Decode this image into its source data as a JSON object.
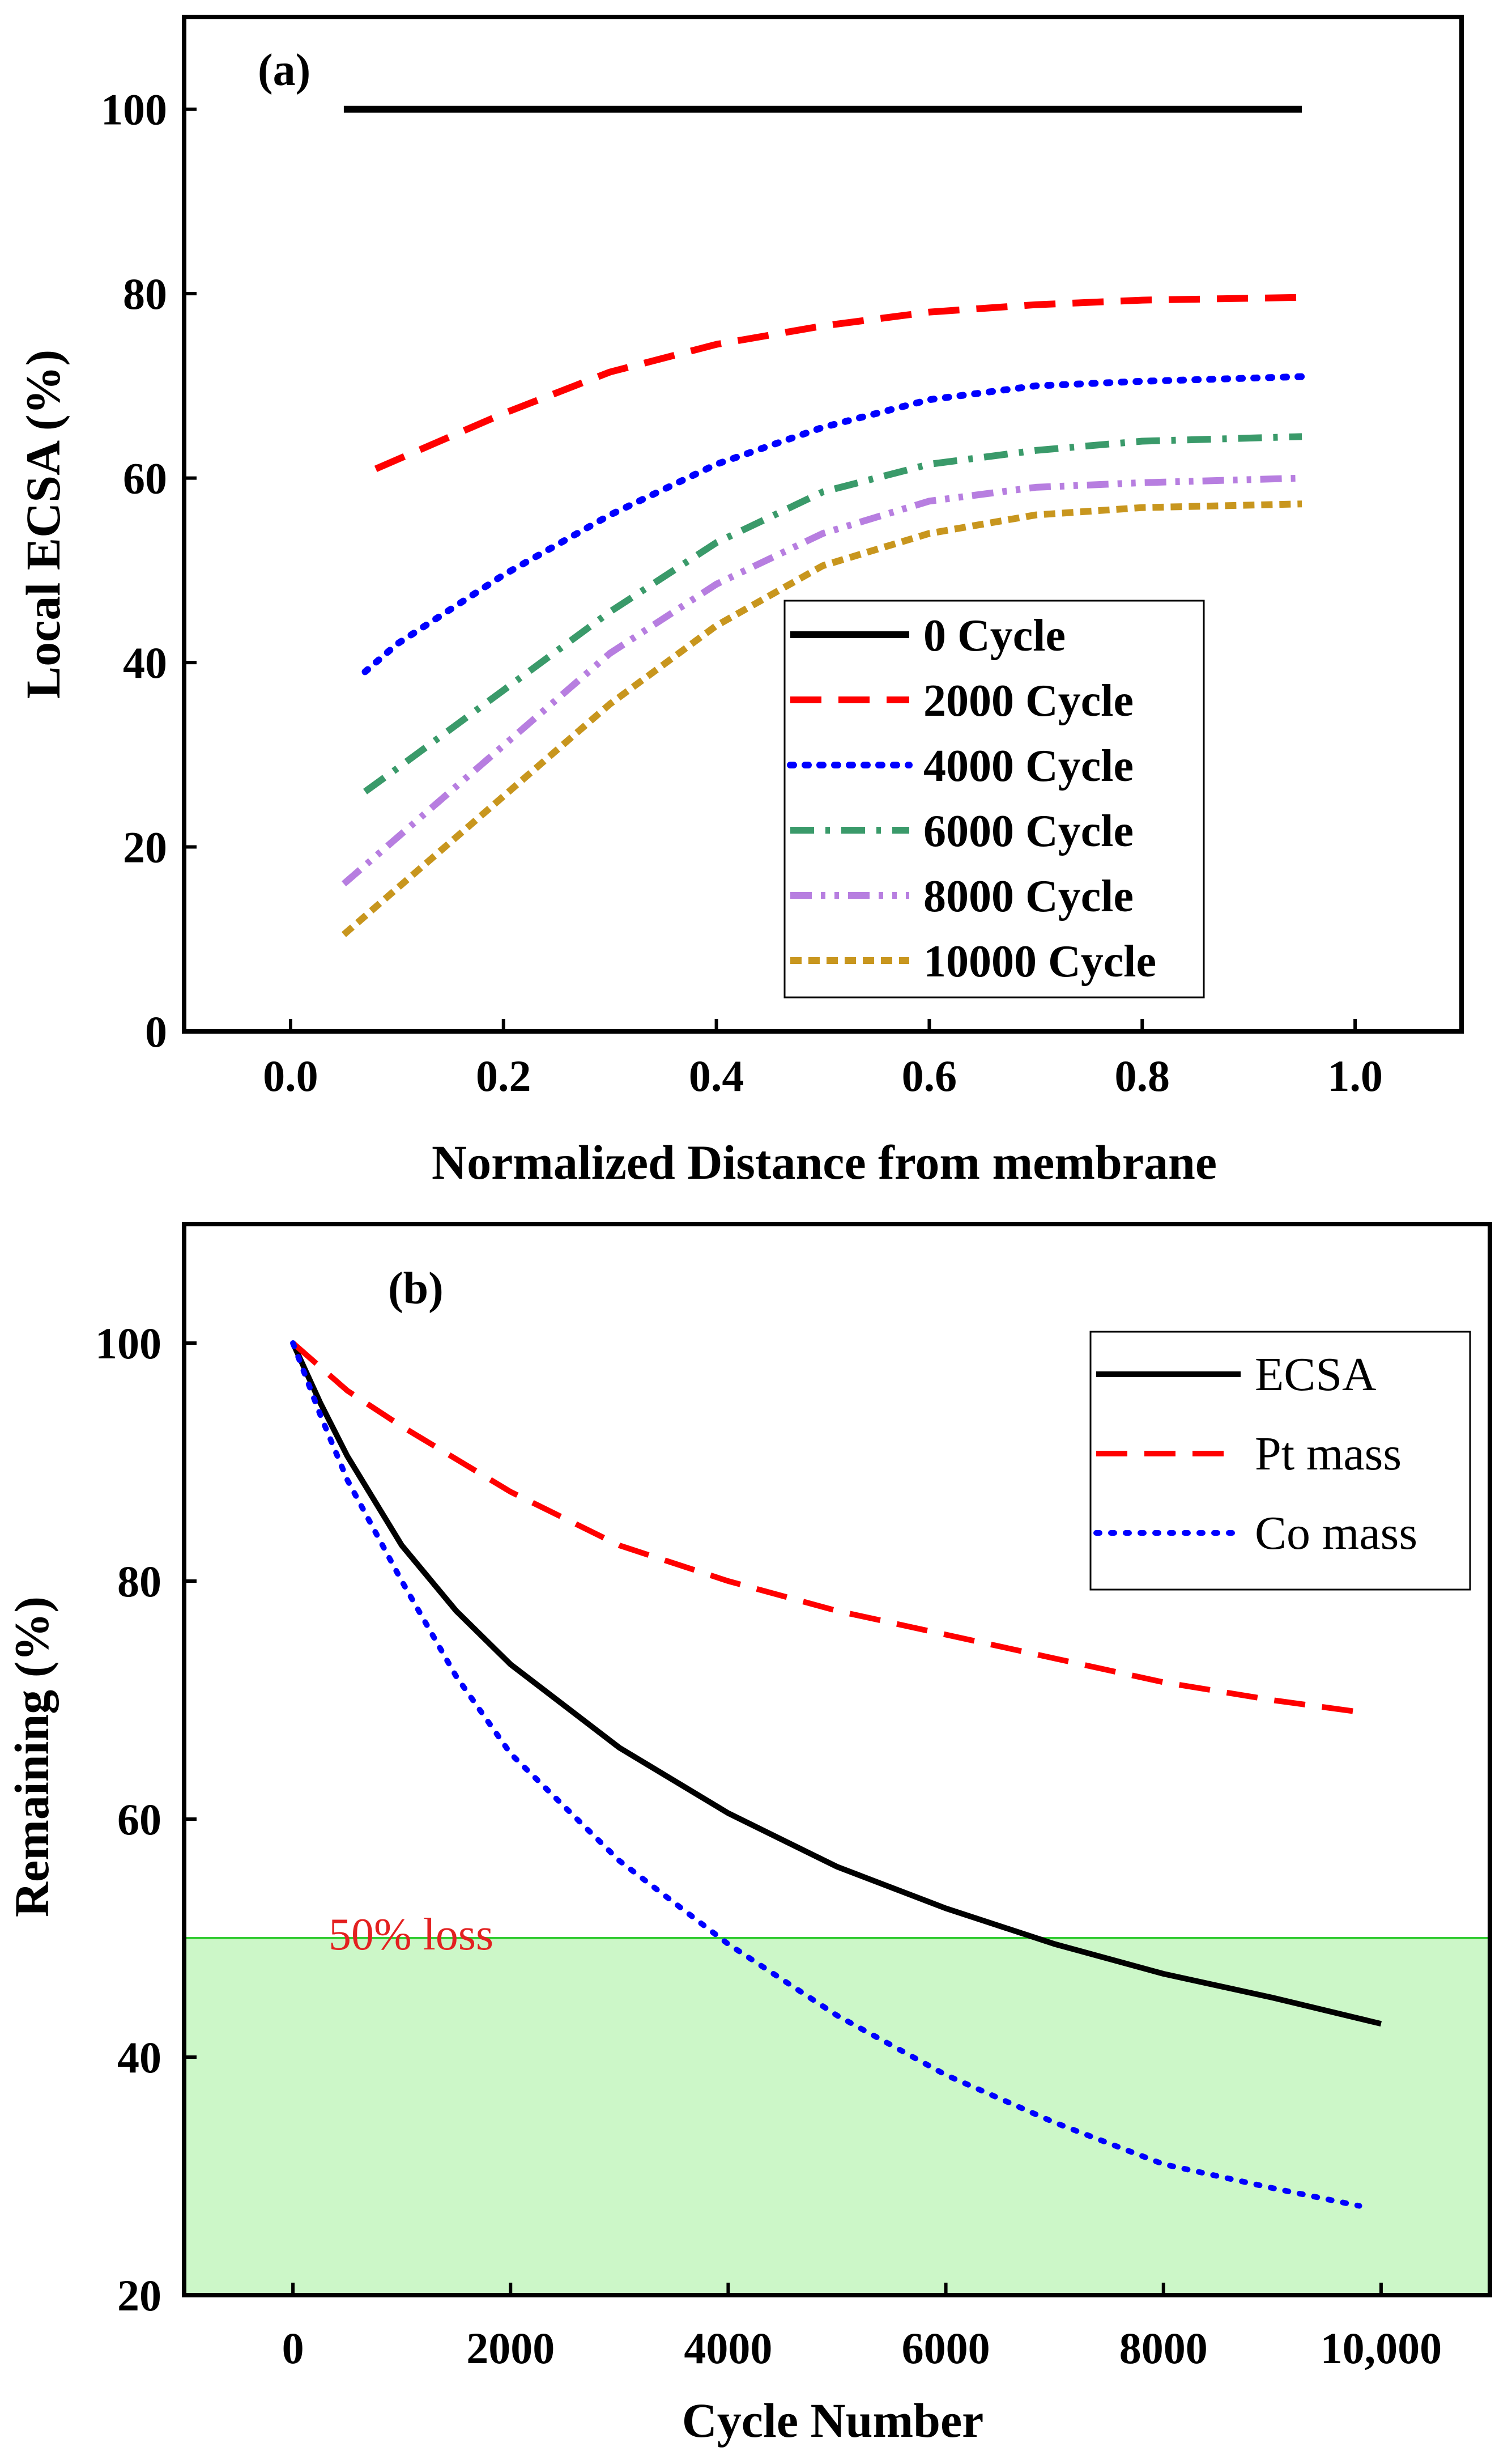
{
  "chart_data": [
    {
      "type": "line",
      "panel_label": "(a)",
      "xlabel": "Normalized Distance from membrane",
      "ylabel": "Local ECSA (%)",
      "xlim": [
        -0.1,
        1.1
      ],
      "ylim": [
        0,
        110
      ],
      "xticks": [
        0.0,
        0.2,
        0.4,
        0.6,
        0.8,
        1.0
      ],
      "xtick_labels": [
        "0.0",
        "0.2",
        "0.4",
        "0.6",
        "0.8",
        "1.0"
      ],
      "yticks": [
        0,
        20,
        40,
        60,
        80,
        100
      ],
      "ytick_labels": [
        "0",
        "20",
        "40",
        "60",
        "80",
        "100"
      ],
      "legend_position": "lower-right",
      "series": [
        {
          "name": "0 Cycle",
          "color": "#000000",
          "style": "solid",
          "points": [
            [
              0.05,
              100
            ],
            [
              0.95,
              100
            ]
          ]
        },
        {
          "name": "2000 Cycle",
          "color": "#ff0000",
          "style": "dash",
          "points": [
            [
              0.08,
              61
            ],
            [
              0.15,
              64.5
            ],
            [
              0.2,
              67
            ],
            [
              0.3,
              71.5
            ],
            [
              0.4,
              74.5
            ],
            [
              0.5,
              76.5
            ],
            [
              0.6,
              78
            ],
            [
              0.7,
              78.8
            ],
            [
              0.8,
              79.3
            ],
            [
              0.95,
              79.6
            ]
          ]
        },
        {
          "name": "4000 Cycle",
          "color": "#0000ff",
          "style": "dot",
          "points": [
            [
              0.07,
              39
            ],
            [
              0.1,
              42
            ],
            [
              0.2,
              49.5
            ],
            [
              0.3,
              56
            ],
            [
              0.4,
              61.5
            ],
            [
              0.5,
              65.5
            ],
            [
              0.6,
              68.5
            ],
            [
              0.7,
              70
            ],
            [
              0.8,
              70.5
            ],
            [
              0.95,
              71
            ]
          ]
        },
        {
          "name": "6000 Cycle",
          "color": "#3a9a6a",
          "style": "dashdot",
          "points": [
            [
              0.07,
              26
            ],
            [
              0.1,
              28.5
            ],
            [
              0.2,
              37
            ],
            [
              0.3,
              45.5
            ],
            [
              0.4,
              53
            ],
            [
              0.5,
              58.5
            ],
            [
              0.6,
              61.5
            ],
            [
              0.7,
              63
            ],
            [
              0.8,
              64
            ],
            [
              0.95,
              64.5
            ]
          ]
        },
        {
          "name": "8000 Cycle",
          "color": "#b77ee0",
          "style": "dashdotdot",
          "points": [
            [
              0.05,
              16
            ],
            [
              0.1,
              21
            ],
            [
              0.2,
              31
            ],
            [
              0.3,
              41
            ],
            [
              0.4,
              48.5
            ],
            [
              0.5,
              54
            ],
            [
              0.6,
              57.5
            ],
            [
              0.7,
              59
            ],
            [
              0.8,
              59.5
            ],
            [
              0.95,
              60
            ]
          ]
        },
        {
          "name": "10000 Cycle",
          "color": "#c8961e",
          "style": "shortdash",
          "points": [
            [
              0.05,
              10.5
            ],
            [
              0.1,
              15.5
            ],
            [
              0.2,
              25.5
            ],
            [
              0.3,
              35.5
            ],
            [
              0.4,
              44
            ],
            [
              0.5,
              50.5
            ],
            [
              0.6,
              54
            ],
            [
              0.7,
              56
            ],
            [
              0.8,
              56.8
            ],
            [
              0.95,
              57.2
            ]
          ]
        }
      ]
    },
    {
      "type": "line",
      "panel_label": "(b)",
      "xlabel": "Cycle Number",
      "ylabel": "Remaining (%)",
      "xlim": [
        -1000,
        11000
      ],
      "ylim": [
        20,
        110
      ],
      "xticks": [
        0,
        2000,
        4000,
        6000,
        8000,
        10000
      ],
      "xtick_labels": [
        "0",
        "2000",
        "4000",
        "6000",
        "8000",
        "10,000"
      ],
      "yticks": [
        20,
        40,
        60,
        80,
        100
      ],
      "ytick_labels": [
        "20",
        "40",
        "60",
        "80",
        "100"
      ],
      "legend_position": "top-right",
      "threshold": {
        "y": 50,
        "label": "50% loss",
        "fill_color": "#ccf7c8",
        "line_color": "#33cc33",
        "label_color": "#e32020"
      },
      "series": [
        {
          "name": "ECSA",
          "color": "#000000",
          "style": "solid",
          "points": [
            [
              0,
              100
            ],
            [
              250,
              95
            ],
            [
              500,
              90.5
            ],
            [
              1000,
              83
            ],
            [
              1500,
              77.5
            ],
            [
              2000,
              73
            ],
            [
              3000,
              66
            ],
            [
              4000,
              60.5
            ],
            [
              5000,
              56
            ],
            [
              6000,
              52.5
            ],
            [
              7000,
              49.5
            ],
            [
              8000,
              47
            ],
            [
              9000,
              45
            ],
            [
              10000,
              42.8
            ]
          ]
        },
        {
          "name": "Pt mass",
          "color": "#ff0000",
          "style": "dash",
          "points": [
            [
              0,
              100
            ],
            [
              500,
              96
            ],
            [
              1000,
              93
            ],
            [
              2000,
              87.5
            ],
            [
              3000,
              83
            ],
            [
              4000,
              80
            ],
            [
              5000,
              77.5
            ],
            [
              6000,
              75.5
            ],
            [
              7000,
              73.5
            ],
            [
              8000,
              71.5
            ],
            [
              9000,
              70
            ],
            [
              9800,
              69
            ]
          ]
        },
        {
          "name": "Co mass",
          "color": "#0000ff",
          "style": "dot",
          "points": [
            [
              0,
              100
            ],
            [
              250,
              94
            ],
            [
              500,
              88.5
            ],
            [
              1000,
              80
            ],
            [
              1500,
              72
            ],
            [
              2000,
              65.5
            ],
            [
              3000,
              56.5
            ],
            [
              4000,
              49.5
            ],
            [
              5000,
              43.5
            ],
            [
              6000,
              38.5
            ],
            [
              7000,
              34.5
            ],
            [
              8000,
              31
            ],
            [
              9000,
              29
            ],
            [
              9800,
              27.5
            ]
          ]
        }
      ]
    }
  ]
}
